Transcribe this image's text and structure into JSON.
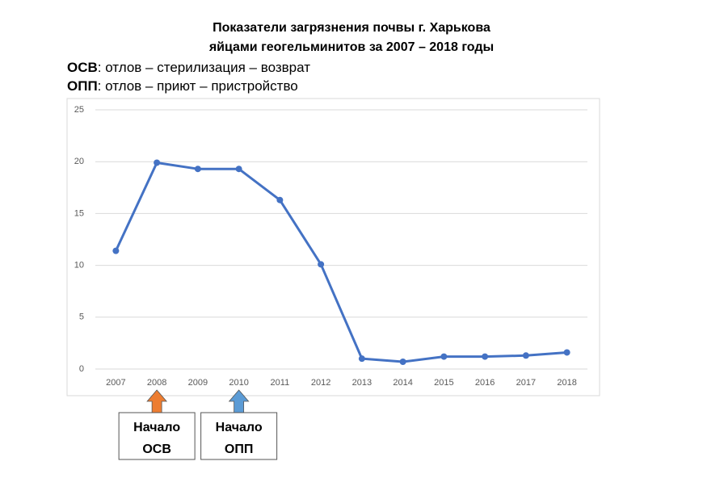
{
  "chart_data": {
    "type": "line",
    "title": [
      "Показатели загрязнения почвы г. Харькова",
      "яйцами геогельминитов за 2007 – 2018 годы"
    ],
    "notes": [
      {
        "abbr": "ОСВ",
        "text": ": отлов – стерилизация – возврат"
      },
      {
        "abbr": "ОПП",
        "text": ": отлов – приют – пристройство"
      }
    ],
    "categories": [
      "2007",
      "2008",
      "2009",
      "2010",
      "2011",
      "2012",
      "2013",
      "2014",
      "2015",
      "2016",
      "2017",
      "2018"
    ],
    "values": [
      11.4,
      19.9,
      19.3,
      19.3,
      16.3,
      10.1,
      1.0,
      0.7,
      1.2,
      1.2,
      1.3,
      1.6
    ],
    "color": "#4472c4",
    "ylim": [
      0,
      25
    ],
    "yticks": [
      0,
      5,
      10,
      15,
      20,
      25
    ],
    "grid": true,
    "annotations": [
      {
        "at": "2008",
        "lines": [
          "Начало",
          "ОСВ"
        ],
        "color": "#ed7d31"
      },
      {
        "at": "2010",
        "lines": [
          "Начало",
          "ОПП"
        ],
        "color": "#5b9bd5"
      }
    ]
  }
}
